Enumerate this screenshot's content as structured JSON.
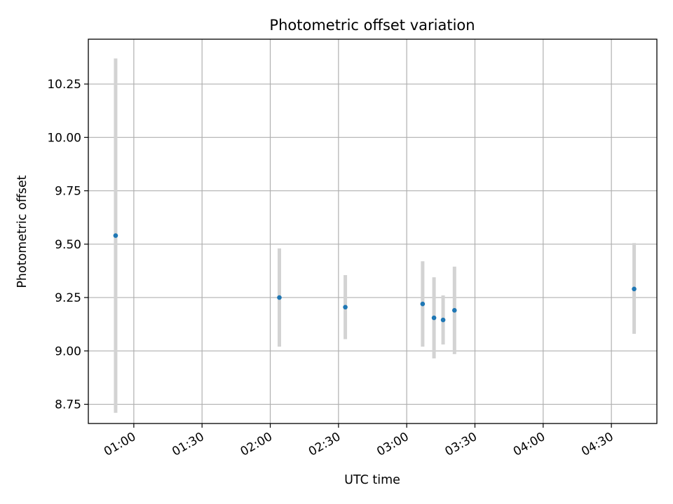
{
  "chart_data": {
    "type": "scatter",
    "title": "Photometric offset variation",
    "xlabel": "UTC time",
    "ylabel": "Photometric offset",
    "x_unit": "time (HH:MM UTC)",
    "xlim": [
      "00:40",
      "04:50"
    ],
    "ylim": [
      8.66,
      10.46
    ],
    "x_ticks": [
      "01:00",
      "01:30",
      "02:00",
      "02:30",
      "03:00",
      "03:30",
      "04:00",
      "04:30"
    ],
    "y_ticks": [
      "8.75",
      "9.00",
      "9.25",
      "9.50",
      "9.75",
      "10.00",
      "10.25"
    ],
    "grid": true,
    "series": [
      {
        "points": [
          {
            "x": "00:52",
            "y": 9.54,
            "err_low": 8.71,
            "err_high": 10.37
          },
          {
            "x": "02:04",
            "y": 9.25,
            "err_low": 9.02,
            "err_high": 9.48
          },
          {
            "x": "02:33",
            "y": 9.205,
            "err_low": 9.055,
            "err_high": 9.355
          },
          {
            "x": "03:07",
            "y": 9.22,
            "err_low": 9.02,
            "err_high": 9.42
          },
          {
            "x": "03:12",
            "y": 9.155,
            "err_low": 8.965,
            "err_high": 9.345
          },
          {
            "x": "03:16",
            "y": 9.145,
            "err_low": 9.03,
            "err_high": 9.26
          },
          {
            "x": "03:21",
            "y": 9.19,
            "err_low": 8.985,
            "err_high": 9.395
          },
          {
            "x": "04:40",
            "y": 9.29,
            "err_low": 9.08,
            "err_high": 9.505
          }
        ]
      }
    ],
    "colors": {
      "marker": "#1f77b4",
      "errorbar": "#d3d3d3",
      "grid": "#b0b0b0",
      "axes": "#000000"
    }
  }
}
